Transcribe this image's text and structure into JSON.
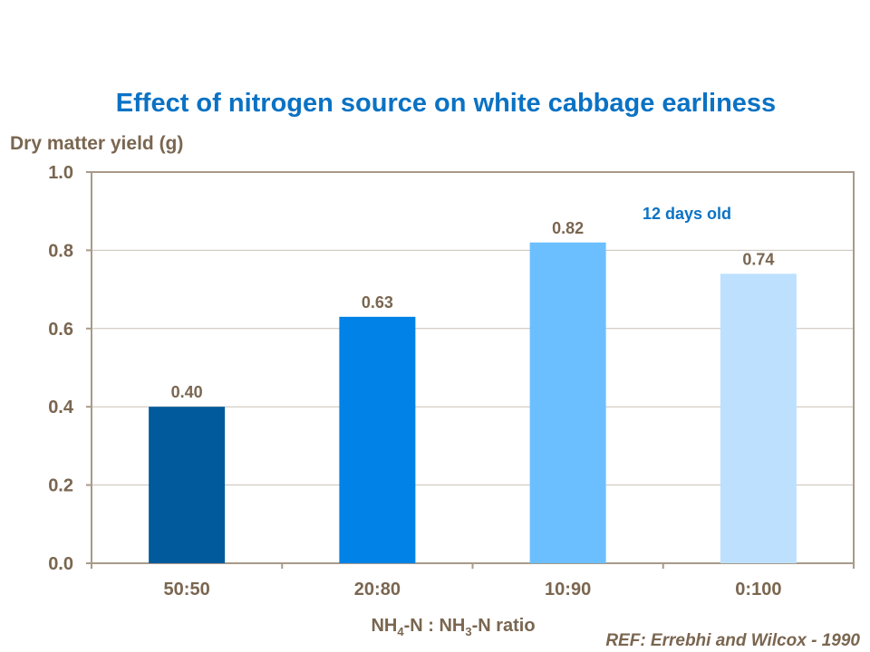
{
  "chart_data": {
    "type": "bar",
    "title": "Effect of nitrogen source on white cabbage earliness",
    "ylabel": "Dry matter yield (g)",
    "xlabel_parts": [
      "NH",
      "4",
      "-N : NH",
      "3",
      "-N ratio"
    ],
    "categories": [
      "50:50",
      "20:80",
      "10:90",
      "0:100"
    ],
    "values": [
      0.4,
      0.63,
      0.82,
      0.74
    ],
    "data_labels": [
      "0.40",
      "0.63",
      "0.82",
      "0.74"
    ],
    "bar_colors": [
      "#005a9c",
      "#0082e6",
      "#6bbfff",
      "#bde0ff"
    ],
    "ylim": [
      0,
      1.0
    ],
    "yticks": [
      "0.0",
      "0.2",
      "0.4",
      "0.6",
      "0.8",
      "1.0"
    ],
    "grid": true,
    "annotation": "12 days old",
    "annotation_color": "#0a72c4",
    "text_color": "#7a6650"
  },
  "reference": "REF: Errebhi and Wilcox - 1990"
}
